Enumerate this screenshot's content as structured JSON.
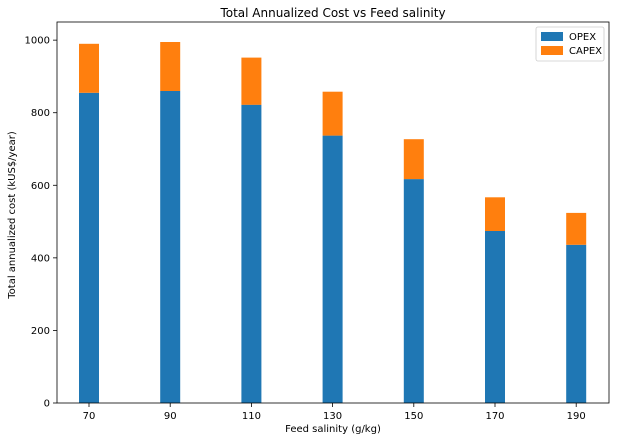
{
  "chart_data": {
    "type": "bar",
    "stacked": true,
    "title": "Total Annualized Cost vs Feed salinity",
    "xlabel": "Feed salinity (g/kg)",
    "ylabel": "Total annualized cost (kUS$/year)",
    "categories": [
      "70",
      "90",
      "110",
      "130",
      "150",
      "170",
      "190"
    ],
    "ylim": [
      0,
      1050
    ],
    "yticks": [
      0,
      200,
      400,
      600,
      800,
      1000
    ],
    "grid": false,
    "legend_position": "top-right",
    "series": [
      {
        "name": "OPEX",
        "color": "#1f77b4",
        "values": [
          855,
          860,
          822,
          737,
          617,
          474,
          436
        ]
      },
      {
        "name": "CAPEX",
        "color": "#ff7f0e",
        "values": [
          135,
          135,
          130,
          121,
          110,
          93,
          88
        ]
      }
    ]
  }
}
